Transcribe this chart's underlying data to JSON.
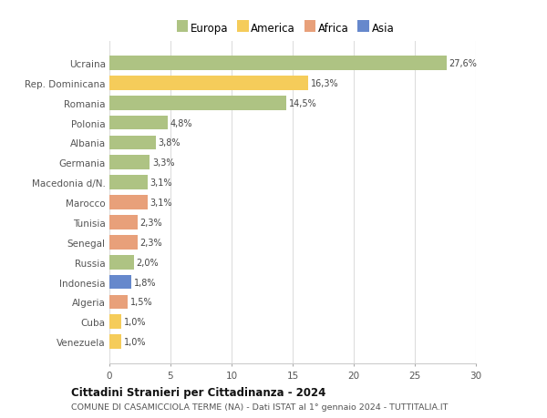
{
  "categories": [
    "Venezuela",
    "Cuba",
    "Algeria",
    "Indonesia",
    "Russia",
    "Senegal",
    "Tunisia",
    "Marocco",
    "Macedonia d/N.",
    "Germania",
    "Albania",
    "Polonia",
    "Romania",
    "Rep. Dominicana",
    "Ucraina"
  ],
  "values": [
    1.0,
    1.0,
    1.5,
    1.8,
    2.0,
    2.3,
    2.3,
    3.1,
    3.1,
    3.3,
    3.8,
    4.8,
    14.5,
    16.3,
    27.6
  ],
  "labels": [
    "1,0%",
    "1,0%",
    "1,5%",
    "1,8%",
    "2,0%",
    "2,3%",
    "2,3%",
    "3,1%",
    "3,1%",
    "3,3%",
    "3,8%",
    "4,8%",
    "14,5%",
    "16,3%",
    "27,6%"
  ],
  "continents": [
    "America",
    "America",
    "Africa",
    "Asia",
    "Europa",
    "Africa",
    "Africa",
    "Africa",
    "Europa",
    "Europa",
    "Europa",
    "Europa",
    "Europa",
    "America",
    "Europa"
  ],
  "colors": {
    "Europa": "#aec383",
    "America": "#f5cc5a",
    "Africa": "#e8a07a",
    "Asia": "#6688cc"
  },
  "legend_order": [
    "Europa",
    "America",
    "Africa",
    "Asia"
  ],
  "legend_colors": [
    "#aec383",
    "#f5cc5a",
    "#e8a07a",
    "#6688cc"
  ],
  "title": "Cittadini Stranieri per Cittadinanza - 2024",
  "subtitle": "COMUNE DI CASAMICCIOLA TERME (NA) - Dati ISTAT al 1° gennaio 2024 - TUTTITALIA.IT",
  "xlim": [
    0,
    30
  ],
  "xticks": [
    0,
    5,
    10,
    15,
    20,
    25,
    30
  ],
  "background_color": "#ffffff",
  "grid_color": "#dddddd"
}
